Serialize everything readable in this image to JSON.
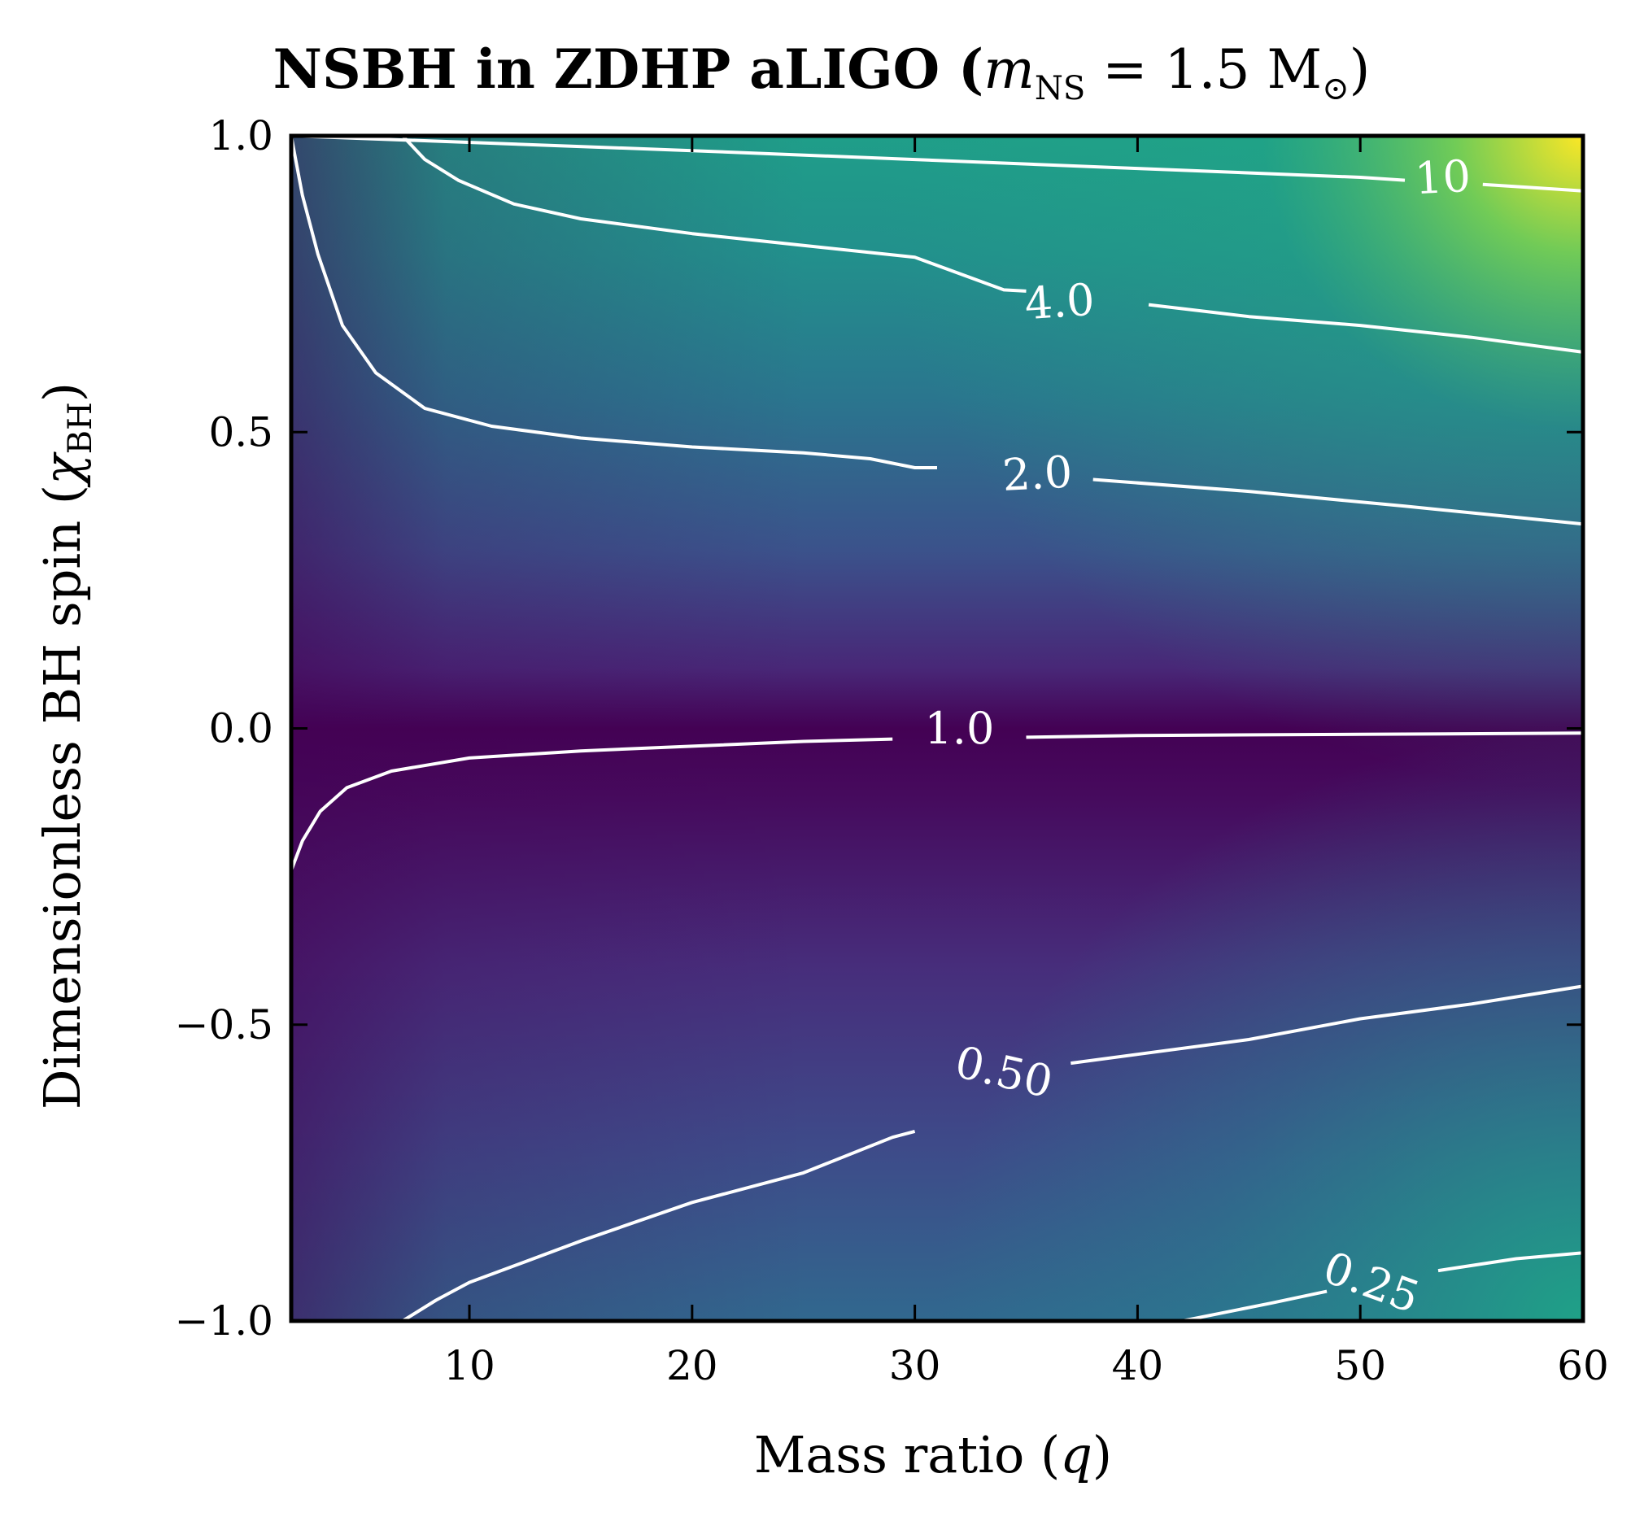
{
  "chart_data": {
    "type": "heatmap",
    "title_main": "NSBH in ZDHP aLIGO (",
    "title_math_m": "m",
    "title_math_sub": "NS",
    "title_math_rest": " = 1.5 M",
    "title_math_sun": "⊙",
    "title_close": ")",
    "xlabel_text": "Mass ratio (",
    "xlabel_var": "q",
    "xlabel_close": ")",
    "ylabel_text": "Dimensionless BH spin (",
    "ylabel_var": "χ",
    "ylabel_sub": "BH",
    "ylabel_close": ")",
    "xlim": [
      2,
      60
    ],
    "ylim": [
      -1.0,
      1.0
    ],
    "x_ticks": [
      10,
      20,
      30,
      40,
      50,
      60
    ],
    "x_tick_labels": [
      "10",
      "20",
      "30",
      "40",
      "50",
      "60"
    ],
    "y_ticks": [
      1.0,
      0.5,
      0.0,
      -0.5,
      -1.0
    ],
    "y_tick_labels": [
      "1.0",
      "0.5",
      "0.0",
      "−0.5",
      "−1.0"
    ],
    "colormap": "viridis",
    "contour_color": "#ffffff",
    "contours": [
      {
        "level": 10,
        "label": "10",
        "label_at": [
          53.7,
          0.93
        ],
        "label_angle": 3,
        "segments": [
          [
            [
              2,
              1.0
            ],
            [
              20,
              0.975
            ],
            [
              30,
              0.96
            ],
            [
              40,
              0.945
            ],
            [
              50,
              0.93
            ],
            [
              52,
              0.925
            ]
          ],
          [
            [
              55.5,
              0.918
            ],
            [
              58,
              0.912
            ],
            [
              60,
              0.907
            ]
          ]
        ]
      },
      {
        "level": 4.0,
        "label": "4.0",
        "label_at": [
          36.5,
          0.72
        ],
        "label_angle": 4,
        "segments": [
          [
            [
              7,
              1.0
            ],
            [
              8,
              0.96
            ],
            [
              9.5,
              0.925
            ],
            [
              12,
              0.885
            ],
            [
              15,
              0.86
            ],
            [
              20,
              0.835
            ],
            [
              25,
              0.815
            ],
            [
              30,
              0.795
            ],
            [
              34,
              0.74
            ],
            [
              35,
              0.738
            ]
          ],
          [
            [
              40.5,
              0.715
            ],
            [
              45,
              0.695
            ],
            [
              50,
              0.68
            ],
            [
              55,
              0.66
            ],
            [
              60,
              0.635
            ]
          ]
        ]
      },
      {
        "level": 2.0,
        "label": "2.0",
        "label_at": [
          35.5,
          0.43
        ],
        "label_angle": 3,
        "segments": [
          [
            [
              2,
              1.0
            ],
            [
              2.5,
              0.9
            ],
            [
              3.2,
              0.8
            ],
            [
              4.3,
              0.68
            ],
            [
              5.8,
              0.6
            ],
            [
              8,
              0.54
            ],
            [
              11,
              0.51
            ],
            [
              15,
              0.49
            ],
            [
              20,
              0.475
            ],
            [
              25,
              0.465
            ],
            [
              28,
              0.455
            ],
            [
              30,
              0.44
            ],
            [
              31,
              0.44
            ]
          ],
          [
            [
              38,
              0.42
            ],
            [
              45,
              0.4
            ],
            [
              52,
              0.375
            ],
            [
              60,
              0.345
            ]
          ]
        ]
      },
      {
        "level": 1.0,
        "label": "1.0",
        "label_at": [
          32,
          0.0
        ],
        "label_angle": 0,
        "segments": [
          [
            [
              2,
              -0.24
            ],
            [
              2.5,
              -0.19
            ],
            [
              3.3,
              -0.14
            ],
            [
              4.5,
              -0.1
            ],
            [
              6.5,
              -0.072
            ],
            [
              10,
              -0.05
            ],
            [
              15,
              -0.038
            ],
            [
              20,
              -0.03
            ],
            [
              25,
              -0.022
            ],
            [
              29,
              -0.018
            ]
          ],
          [
            [
              35,
              -0.015
            ],
            [
              40,
              -0.012
            ],
            [
              50,
              -0.01
            ],
            [
              60,
              -0.008
            ]
          ]
        ]
      },
      {
        "level": 0.5,
        "label": "0.50",
        "label_at": [
          34,
          -0.58
        ],
        "label_angle": -13,
        "segments": [
          [
            [
              7,
              -1.0
            ],
            [
              8.5,
              -0.965
            ],
            [
              10,
              -0.935
            ],
            [
              12.5,
              -0.9
            ],
            [
              15,
              -0.865
            ],
            [
              20,
              -0.8
            ],
            [
              25,
              -0.75
            ],
            [
              29,
              -0.69
            ],
            [
              30,
              -0.68
            ]
          ],
          [
            [
              37,
              -0.565
            ],
            [
              40,
              -0.55
            ],
            [
              45,
              -0.525
            ],
            [
              50,
              -0.49
            ],
            [
              55,
              -0.465
            ],
            [
              60,
              -0.435
            ]
          ]
        ]
      },
      {
        "level": 0.25,
        "label": "0.25",
        "label_at": [
          50.5,
          -0.935
        ],
        "label_angle": -20,
        "segments": [
          [
            [
              42,
              -1.0
            ],
            [
              46,
              -0.97
            ],
            [
              48.5,
              -0.95
            ]
          ],
          [
            [
              53.5,
              -0.915
            ],
            [
              57,
              -0.895
            ],
            [
              60,
              -0.885
            ]
          ]
        ]
      }
    ]
  }
}
